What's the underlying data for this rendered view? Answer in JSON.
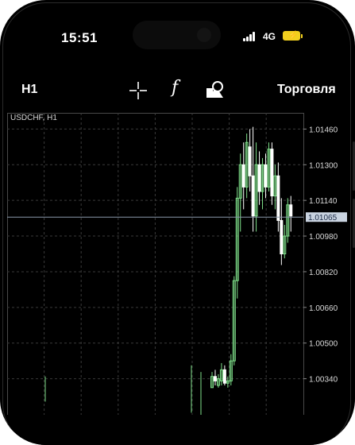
{
  "status_bar": {
    "time": "15:51",
    "network": "4G",
    "signal_icon": "signal-bars-icon",
    "battery_icon": "battery-charging-icon"
  },
  "toolbar": {
    "timeframe": "H1",
    "crosshair_icon": "crosshair-icon",
    "indicators_label": "f",
    "objects_icon": "objects-icon",
    "trade_label": "Торговля"
  },
  "chart": {
    "symbol_label": "USDCHF, H1",
    "current_price": "1.01065",
    "price_ticks": [
      "1.01460",
      "1.01300",
      "1.01140",
      "1.00980",
      "1.00820",
      "1.00660",
      "1.00500",
      "1.00340"
    ],
    "colors": {
      "up": "#7fe08a",
      "down": "#ffffff",
      "grid": "#3a3a3a",
      "price_line": "#8a97aa",
      "price_badge": "#c9d3e0"
    }
  },
  "chart_data": {
    "type": "candlestick",
    "ylim": [
      1.0031,
      1.0149
    ],
    "candles": [
      {
        "o": 1.003,
        "h": 1.0037,
        "l": 1.003,
        "c": 1.0035
      },
      {
        "o": 1.0035,
        "h": 1.0038,
        "l": 1.0031,
        "c": 1.0033
      },
      {
        "o": 1.0031,
        "h": 1.0036,
        "l": 1.003,
        "c": 1.0034
      },
      {
        "o": 1.0033,
        "h": 1.0041,
        "l": 1.0031,
        "c": 1.0038
      },
      {
        "o": 1.0038,
        "h": 1.004,
        "l": 1.0031,
        "c": 1.0032
      },
      {
        "o": 1.0032,
        "h": 1.0035,
        "l": 1.003,
        "c": 1.0033
      },
      {
        "o": 1.0033,
        "h": 1.0045,
        "l": 1.0031,
        "c": 1.0042
      },
      {
        "o": 1.0042,
        "h": 1.008,
        "l": 1.004,
        "c": 1.0078
      },
      {
        "o": 1.0078,
        "h": 1.012,
        "l": 1.007,
        "c": 1.0115
      },
      {
        "o": 1.0115,
        "h": 1.0135,
        "l": 1.01,
        "c": 1.013
      },
      {
        "o": 1.013,
        "h": 1.014,
        "l": 1.011,
        "c": 1.012
      },
      {
        "o": 1.012,
        "h": 1.0144,
        "l": 1.0115,
        "c": 1.014
      },
      {
        "o": 1.0138,
        "h": 1.0146,
        "l": 1.0118,
        "c": 1.0125
      },
      {
        "o": 1.0125,
        "h": 1.0147,
        "l": 1.01,
        "c": 1.0107
      },
      {
        "o": 1.0107,
        "h": 1.014,
        "l": 1.01,
        "c": 1.013
      },
      {
        "o": 1.013,
        "h": 1.0136,
        "l": 1.0112,
        "c": 1.0118
      },
      {
        "o": 1.0118,
        "h": 1.0133,
        "l": 1.011,
        "c": 1.013
      },
      {
        "o": 1.013,
        "h": 1.0135,
        "l": 1.0115,
        "c": 1.012
      },
      {
        "o": 1.012,
        "h": 1.014,
        "l": 1.0118,
        "c": 1.0137
      },
      {
        "o": 1.0137,
        "h": 1.014,
        "l": 1.0112,
        "c": 1.0116
      },
      {
        "o": 1.0116,
        "h": 1.013,
        "l": 1.011,
        "c": 1.0125
      },
      {
        "o": 1.0125,
        "h": 1.0131,
        "l": 1.01,
        "c": 1.0105
      },
      {
        "o": 1.0105,
        "h": 1.0115,
        "l": 1.0085,
        "c": 1.009
      },
      {
        "o": 1.009,
        "h": 1.0103,
        "l": 1.0088,
        "c": 1.0098
      },
      {
        "o": 1.0098,
        "h": 1.0115,
        "l": 1.0095,
        "c": 1.0112
      },
      {
        "o": 1.0112,
        "h": 1.0116,
        "l": 1.01,
        "c": 1.0107
      }
    ]
  }
}
